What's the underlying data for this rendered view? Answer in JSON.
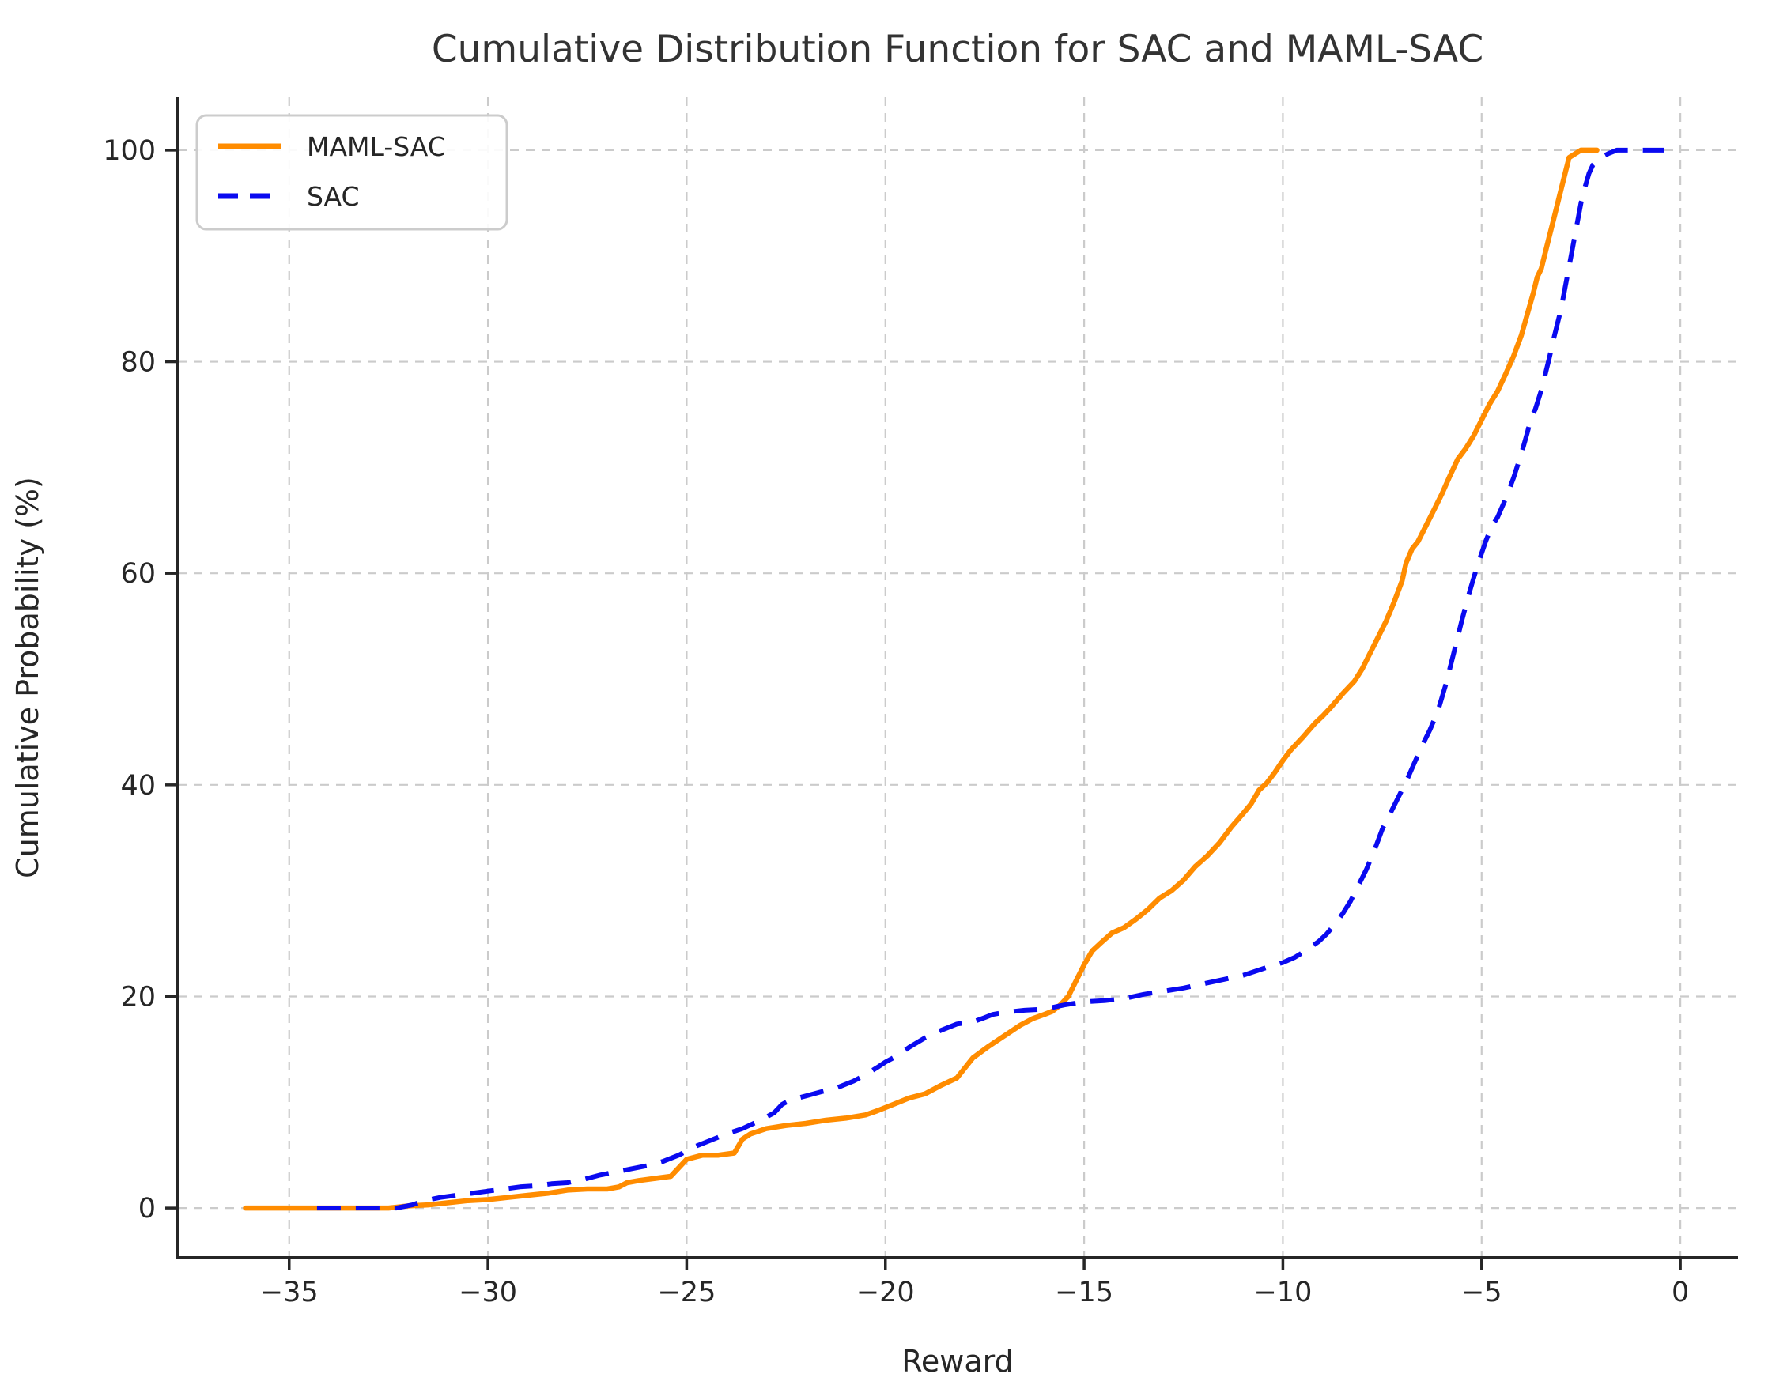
{
  "chart_data": {
    "type": "line",
    "title": "Cumulative Distribution Function for SAC and MAML-SAC",
    "xlabel": "Reward",
    "ylabel": "Cumulative Probability (%)",
    "xlim": [
      -37.8,
      1.45
    ],
    "ylim": [
      -4.7,
      105
    ],
    "xticks": [
      -35,
      -30,
      -25,
      -20,
      -15,
      -10,
      -5,
      0
    ],
    "yticks": [
      0,
      20,
      40,
      60,
      80,
      100
    ],
    "grid": true,
    "grid_style": "dashed",
    "grid_color": "#cbcbcb",
    "legend_position": "upper left",
    "series": [
      {
        "name": "MAML-SAC",
        "color": "#ff8c00",
        "style": "solid",
        "x": [
          -36.1,
          -35.5,
          -35.0,
          -34.5,
          -34.0,
          -33.5,
          -33.0,
          -32.5,
          -32.0,
          -31.5,
          -31.0,
          -30.5,
          -30.0,
          -29.5,
          -29.0,
          -28.5,
          -28.0,
          -27.5,
          -27.0,
          -26.7,
          -26.5,
          -26.2,
          -25.8,
          -25.4,
          -25.0,
          -24.6,
          -24.2,
          -23.8,
          -23.6,
          -23.4,
          -23.0,
          -22.5,
          -22.0,
          -21.5,
          -21.0,
          -20.5,
          -20.2,
          -19.8,
          -19.4,
          -19.0,
          -18.6,
          -18.2,
          -17.8,
          -17.4,
          -17.0,
          -16.6,
          -16.3,
          -16.0,
          -15.8,
          -15.6,
          -15.4,
          -15.2,
          -15.0,
          -14.8,
          -14.6,
          -14.3,
          -14.0,
          -13.7,
          -13.4,
          -13.1,
          -12.8,
          -12.5,
          -12.2,
          -11.9,
          -11.6,
          -11.3,
          -11.0,
          -10.8,
          -10.6,
          -10.4,
          -10.2,
          -10.0,
          -9.8,
          -9.5,
          -9.2,
          -9.0,
          -8.8,
          -8.5,
          -8.2,
          -8.0,
          -7.8,
          -7.6,
          -7.4,
          -7.2,
          -7.0,
          -6.9,
          -6.75,
          -6.6,
          -6.4,
          -6.2,
          -6.0,
          -5.8,
          -5.6,
          -5.4,
          -5.2,
          -5.0,
          -4.8,
          -4.6,
          -4.4,
          -4.2,
          -4.0,
          -3.85,
          -3.7,
          -3.6,
          -3.5,
          -3.4,
          -3.3,
          -3.2,
          -3.1,
          -3.0,
          -2.9,
          -2.8,
          -2.5,
          -2.1
        ],
        "y": [
          0,
          0,
          0,
          0,
          0,
          0,
          0,
          0,
          0.2,
          0.3,
          0.5,
          0.7,
          0.8,
          1.0,
          1.2,
          1.4,
          1.7,
          1.8,
          1.8,
          2.0,
          2.4,
          2.6,
          2.8,
          3.0,
          4.6,
          5.0,
          5.0,
          5.2,
          6.5,
          7.0,
          7.5,
          7.8,
          8.0,
          8.3,
          8.5,
          8.8,
          9.2,
          9.8,
          10.4,
          10.8,
          11.6,
          12.3,
          14.2,
          15.3,
          16.3,
          17.3,
          17.9,
          18.3,
          18.6,
          19.2,
          20.0,
          21.5,
          23.0,
          24.3,
          25.0,
          26.0,
          26.5,
          27.3,
          28.2,
          29.3,
          30.0,
          31.0,
          32.3,
          33.3,
          34.5,
          36.0,
          37.3,
          38.2,
          39.5,
          40.2,
          41.2,
          42.3,
          43.3,
          44.5,
          45.8,
          46.5,
          47.3,
          48.6,
          49.8,
          51.0,
          52.5,
          54.0,
          55.5,
          57.3,
          59.3,
          61.0,
          62.3,
          63.0,
          64.5,
          66.0,
          67.5,
          69.2,
          70.8,
          71.8,
          73.0,
          74.5,
          76.0,
          77.2,
          78.8,
          80.5,
          82.5,
          84.5,
          86.5,
          88.0,
          88.8,
          90.3,
          91.8,
          93.3,
          94.8,
          96.3,
          97.8,
          99.3,
          100,
          100
        ]
      },
      {
        "name": "SAC",
        "color": "#0a0af0",
        "style": "dashed",
        "x": [
          -34.3,
          -33.8,
          -33.3,
          -32.8,
          -32.3,
          -31.9,
          -31.6,
          -31.2,
          -30.8,
          -30.4,
          -30.0,
          -29.6,
          -29.2,
          -28.8,
          -28.4,
          -28.0,
          -27.6,
          -27.2,
          -26.8,
          -26.4,
          -26.0,
          -25.6,
          -25.2,
          -24.8,
          -24.4,
          -24.0,
          -23.6,
          -23.2,
          -22.8,
          -22.6,
          -22.4,
          -22.0,
          -21.6,
          -21.2,
          -20.8,
          -20.5,
          -20.2,
          -20.0,
          -19.7,
          -19.4,
          -19.0,
          -18.6,
          -18.2,
          -17.8,
          -17.5,
          -17.3,
          -17.0,
          -16.5,
          -16.0,
          -15.5,
          -15.0,
          -14.5,
          -14.0,
          -13.5,
          -13.0,
          -12.5,
          -12.0,
          -11.5,
          -11.0,
          -10.6,
          -10.2,
          -10.0,
          -9.7,
          -9.4,
          -9.1,
          -8.9,
          -8.7,
          -8.5,
          -8.3,
          -8.1,
          -7.9,
          -7.7,
          -7.5,
          -7.3,
          -7.1,
          -6.9,
          -6.7,
          -6.5,
          -6.3,
          -6.1,
          -5.9,
          -5.7,
          -5.5,
          -5.3,
          -5.1,
          -4.9,
          -4.75,
          -4.6,
          -4.4,
          -4.2,
          -4.0,
          -3.85,
          -3.75,
          -3.65,
          -3.5,
          -3.4,
          -3.3,
          -3.2,
          -3.1,
          -3.0,
          -2.9,
          -2.8,
          -2.7,
          -2.6,
          -2.5,
          -2.4,
          -2.3,
          -2.2,
          -2.0,
          -1.8,
          -1.6,
          -1.2,
          -0.8,
          -0.4
        ],
        "y": [
          0,
          0,
          0,
          0,
          0,
          0.3,
          0.7,
          1.0,
          1.2,
          1.4,
          1.6,
          1.8,
          2.0,
          2.1,
          2.3,
          2.4,
          2.7,
          3.1,
          3.4,
          3.7,
          4.0,
          4.4,
          5.0,
          5.8,
          6.4,
          7.0,
          7.5,
          8.2,
          9.0,
          9.8,
          10.2,
          10.6,
          11.0,
          11.4,
          12.0,
          12.6,
          13.3,
          13.8,
          14.4,
          15.2,
          16.1,
          16.8,
          17.4,
          17.6,
          18.0,
          18.3,
          18.5,
          18.7,
          18.8,
          19.2,
          19.5,
          19.6,
          19.8,
          20.2,
          20.5,
          20.8,
          21.2,
          21.6,
          22.0,
          22.5,
          23.0,
          23.2,
          23.7,
          24.4,
          25.2,
          25.9,
          26.8,
          27.8,
          29.0,
          30.5,
          32.0,
          33.8,
          35.8,
          37.3,
          38.8,
          40.3,
          42.0,
          43.7,
          45.2,
          47.0,
          49.5,
          52.5,
          55.5,
          58.3,
          60.8,
          63.0,
          64.4,
          65.3,
          67.0,
          69.0,
          71.3,
          73.3,
          74.8,
          75.5,
          77.3,
          78.8,
          80.3,
          82.0,
          83.5,
          85.0,
          87.0,
          89.0,
          91.0,
          93.0,
          95.0,
          96.5,
          97.8,
          98.6,
          99.3,
          99.7,
          100,
          100,
          100,
          100
        ]
      }
    ]
  }
}
